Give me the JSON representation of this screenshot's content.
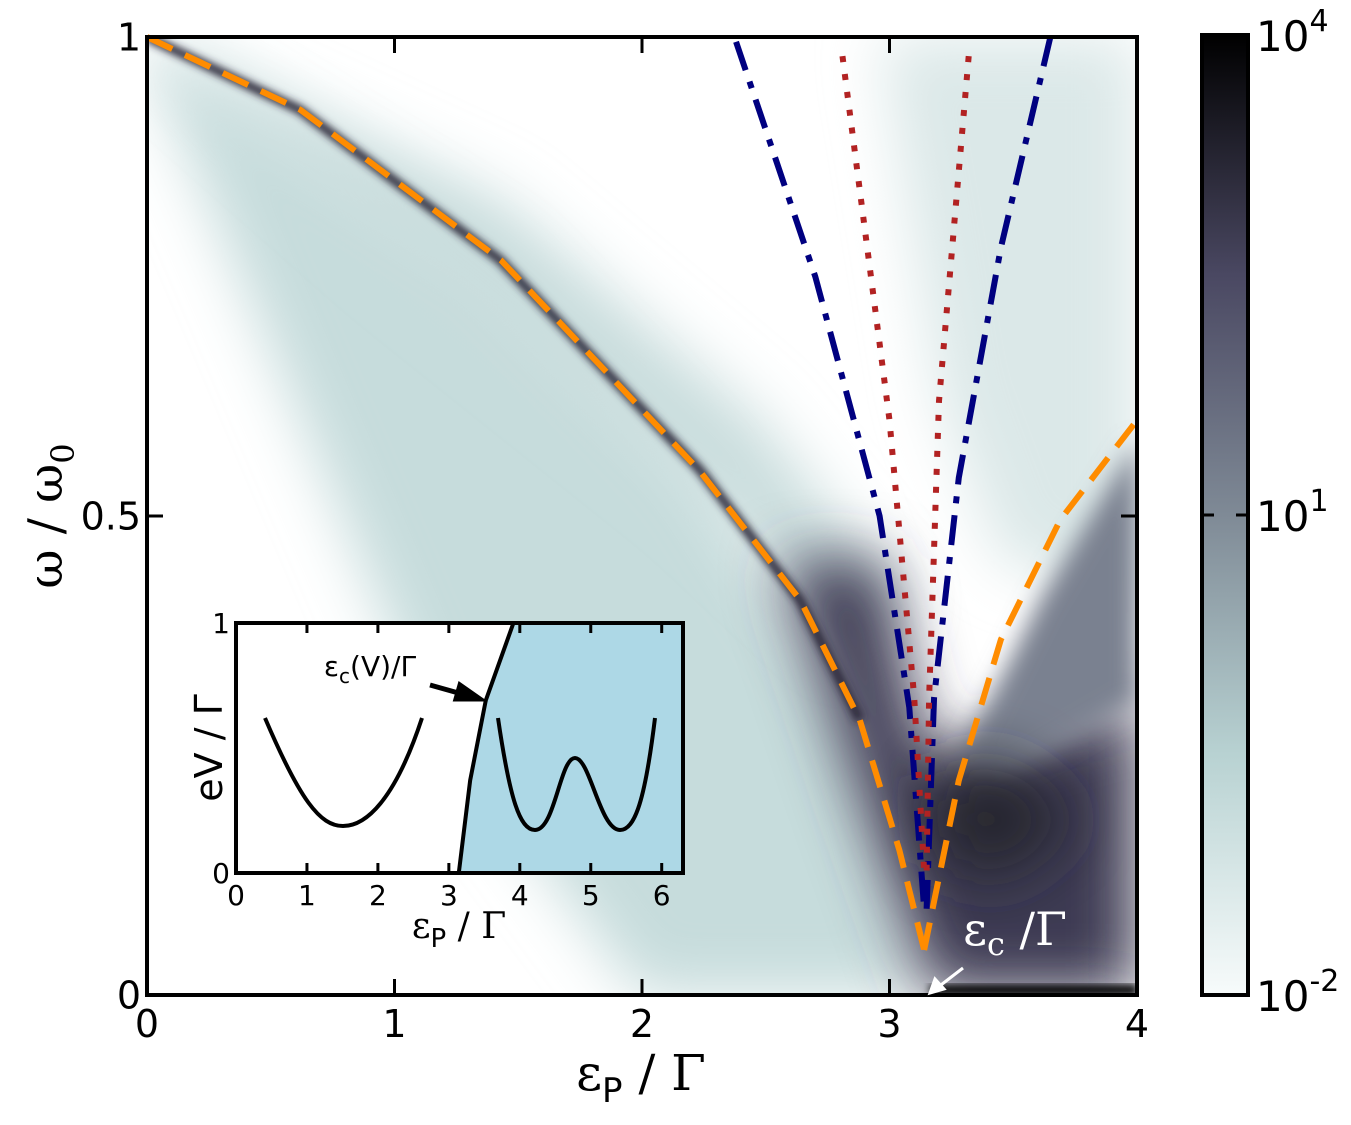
{
  "chart_data": [
    {
      "type": "line",
      "x_label": {
        "main": "ε",
        "sub": "P",
        "tail": " / Γ"
      },
      "y_label": {
        "main": "ω / ω",
        "sub": "0"
      },
      "xlim": [
        0,
        4
      ],
      "ylim": [
        0,
        1
      ],
      "xticks": [
        0,
        1,
        2,
        3,
        4
      ],
      "yticks": [
        0,
        0.5,
        1
      ],
      "series": [
        {
          "color": "#ff8c00",
          "dash": "dashed",
          "x": [
            0,
            0.62,
            1.43,
            2.23,
            2.64,
            2.88,
            3.04,
            3.14
          ],
          "values": [
            1,
            0.924,
            0.767,
            0.548,
            0.412,
            0.287,
            0.151,
            0.047
          ]
        },
        {
          "color": "#ff8c00",
          "dash": "dashed",
          "x": [
            3.14,
            3.28,
            3.45,
            3.69,
            4
          ],
          "values": [
            0.047,
            0.224,
            0.371,
            0.496,
            0.6
          ]
        },
        {
          "color": "#000080",
          "dash": "dashdot",
          "x": [
            2.38,
            2.7,
            2.96,
            3.08,
            3.14
          ],
          "values": [
            0.995,
            0.75,
            0.5,
            0.3,
            0.09
          ]
        },
        {
          "color": "#000080",
          "dash": "dashdot",
          "x": [
            3.65,
            3.45,
            3.28,
            3.18,
            3.15
          ],
          "values": [
            1,
            0.78,
            0.54,
            0.31,
            0.09
          ]
        },
        {
          "color": "#b22222",
          "dash": "dotted",
          "x": [
            2.81,
            3.0,
            3.1,
            3.14
          ],
          "values": [
            0.98,
            0.6,
            0.31,
            0.13
          ]
        },
        {
          "color": "#b22222",
          "dash": "dotted",
          "x": [
            3.32,
            3.2,
            3.16,
            3.15
          ],
          "values": [
            0.98,
            0.62,
            0.31,
            0.13
          ]
        }
      ],
      "annotation": {
        "main": "ε",
        "sub": "c",
        "tail": " /Γ"
      },
      "colorbar": {
        "scale": "log",
        "lim": [
          0.01,
          10000
        ],
        "colors": [
          "#f7fbfb",
          "#b8d2d2",
          "#7f8a96",
          "#4a4862",
          "#000000"
        ],
        "ticks": [
          {
            "value": 0.01,
            "label": "10",
            "exponent": "-2"
          },
          {
            "value": 10,
            "label": "10",
            "exponent": "1"
          },
          {
            "value": 10000,
            "label": "10",
            "exponent": "4"
          }
        ]
      }
    },
    {
      "type": "line",
      "x_label": {
        "main": "ε",
        "sub": "P",
        "tail": " / Γ"
      },
      "y_label": "eV / Γ",
      "xlim": [
        0,
        6.3
      ],
      "ylim": [
        0,
        1
      ],
      "xticks": [
        0,
        1,
        2,
        3,
        4,
        5,
        6
      ],
      "yticks": [
        0,
        1
      ],
      "fill_right": "#add8e6",
      "series": [
        {
          "color": "#000000",
          "x": [
            3.14,
            3.3,
            3.52,
            3.91
          ],
          "values": [
            0,
            0.37,
            0.69,
            1
          ]
        }
      ],
      "annotation": {
        "main": "ε",
        "sub": "c",
        "tail": "(V)/Γ"
      }
    }
  ]
}
